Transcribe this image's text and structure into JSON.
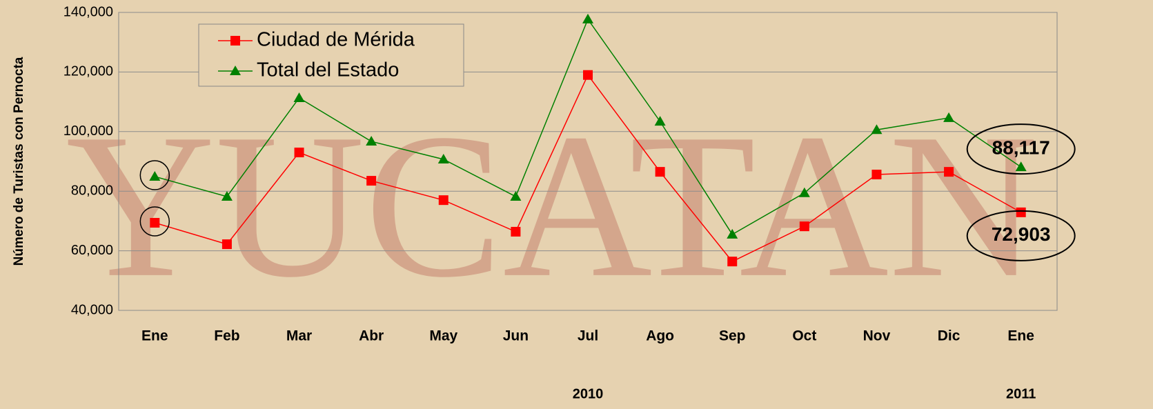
{
  "chart_data": {
    "type": "line",
    "watermark": "YUCATAN",
    "y_axis_label": "Número de Turistas con Pernocta",
    "categories": [
      "Ene",
      "Feb",
      "Mar",
      "Abr",
      "May",
      "Jun",
      "Jul",
      "Ago",
      "Sep",
      "Oct",
      "Nov",
      "Dic",
      "Ene"
    ],
    "year_labels": [
      {
        "label": "2010",
        "category": 6
      },
      {
        "label": "2011",
        "category": 12
      }
    ],
    "series": [
      {
        "name": "Ciudad de Mérida",
        "color": "#ff0000",
        "marker": "square",
        "values": [
          69400,
          62200,
          93000,
          83500,
          77000,
          66400,
          119000,
          86500,
          56400,
          68200,
          85600,
          86500,
          72903
        ],
        "value_labels": [
          null,
          null,
          null,
          null,
          null,
          null,
          null,
          null,
          null,
          null,
          null,
          null,
          "72,903"
        ]
      },
      {
        "name": "Total del Estado",
        "color": "#008000",
        "marker": "triangle",
        "values": [
          84900,
          78200,
          111300,
          96700,
          90700,
          78200,
          137700,
          103400,
          65500,
          79400,
          100600,
          104600,
          88117
        ],
        "value_labels": [
          null,
          null,
          null,
          null,
          null,
          null,
          null,
          null,
          null,
          null,
          null,
          null,
          "88,117"
        ]
      }
    ],
    "ylim": [
      40000,
      140000
    ],
    "yticks": [
      {
        "value": 40000,
        "label": "40,000"
      },
      {
        "value": 60000,
        "label": "60,000"
      },
      {
        "value": 80000,
        "label": "80,000"
      },
      {
        "value": 100000,
        "label": "100,000"
      },
      {
        "value": 120000,
        "label": "120,000"
      },
      {
        "value": 140000,
        "label": "140,000"
      }
    ],
    "grid": true,
    "legend": "top-left"
  }
}
